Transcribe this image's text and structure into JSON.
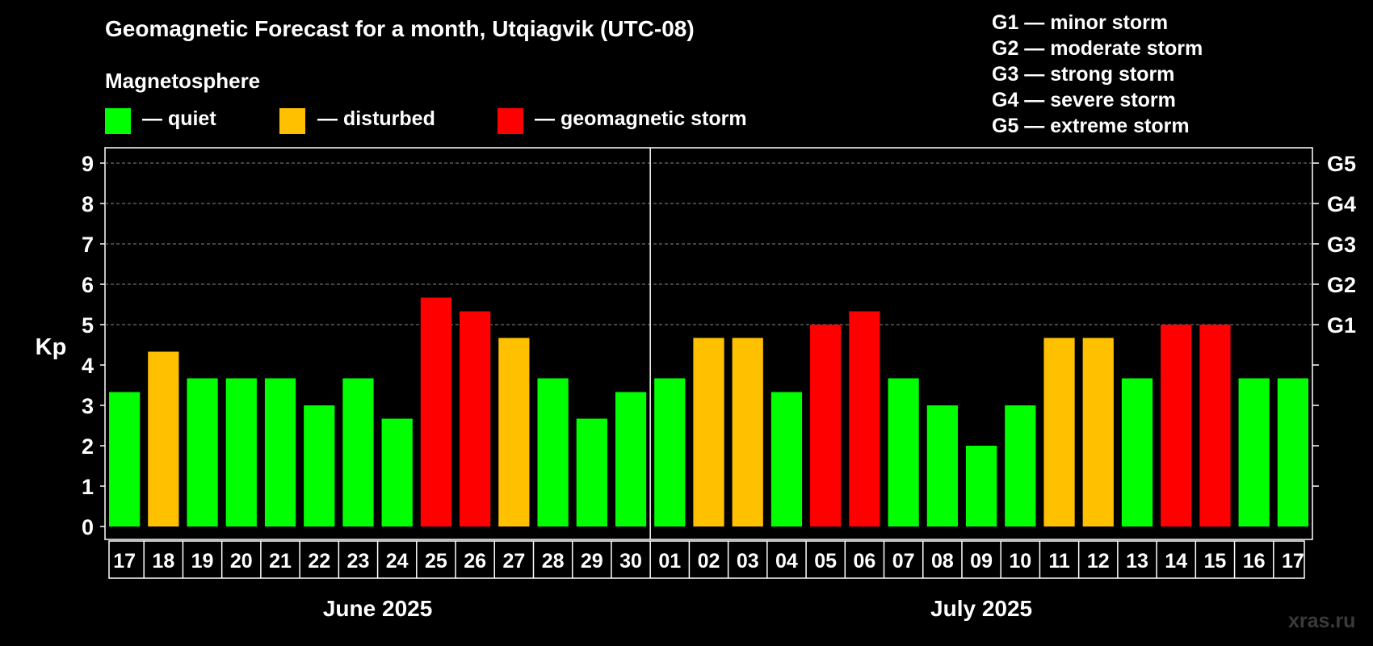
{
  "header": {
    "title": "Geomagnetic Forecast for a month, Utqiagvik (UTC-08)",
    "magnetosphere_label": "Magnetosphere"
  },
  "legend": [
    {
      "label": "— quiet",
      "color": "#00ff00"
    },
    {
      "label": "— disturbed",
      "color": "#ffc000"
    },
    {
      "label": "— geomagnetic storm",
      "color": "#ff0000"
    }
  ],
  "storm_levels": [
    "G1 — minor storm",
    "G2 — moderate storm",
    "G3 — strong storm",
    "G4 — severe storm",
    "G5 — extreme storm"
  ],
  "watermark": "xras.ru",
  "colors": {
    "quiet": "#00ff00",
    "disturbed": "#ffc000",
    "storm": "#ff0000",
    "background": "#000000",
    "axis": "#ffffff"
  },
  "chart_data": {
    "type": "bar",
    "title": "Geomagnetic Forecast for a month, Utqiagvik (UTC-08)",
    "ylabel": "Kp",
    "ylim": [
      0,
      9
    ],
    "yticks": [
      "0",
      "1",
      "2",
      "3",
      "4",
      "5",
      "6",
      "7",
      "8",
      "9"
    ],
    "right_axis": [
      {
        "kp": 5,
        "label": "G1"
      },
      {
        "kp": 6,
        "label": "G2"
      },
      {
        "kp": 7,
        "label": "G3"
      },
      {
        "kp": 8,
        "label": "G4"
      },
      {
        "kp": 9,
        "label": "G5"
      }
    ],
    "months": [
      {
        "label": "June 2025",
        "days": 14
      },
      {
        "label": "July 2025",
        "days": 17
      }
    ],
    "categories": [
      "17",
      "18",
      "19",
      "20",
      "21",
      "22",
      "23",
      "24",
      "25",
      "26",
      "27",
      "28",
      "29",
      "30",
      "01",
      "02",
      "03",
      "04",
      "05",
      "06",
      "07",
      "08",
      "09",
      "10",
      "11",
      "12",
      "13",
      "14",
      "15",
      "16",
      "17"
    ],
    "values": [
      3.33,
      4.33,
      3.67,
      3.67,
      3.67,
      3.0,
      3.67,
      2.67,
      5.67,
      5.33,
      4.67,
      3.67,
      2.67,
      3.33,
      3.67,
      4.67,
      4.67,
      3.33,
      5.0,
      5.33,
      3.67,
      3.0,
      2.0,
      3.0,
      4.67,
      4.67,
      3.67,
      5.0,
      5.0,
      3.67,
      3.67
    ],
    "levels": [
      "quiet",
      "disturbed",
      "quiet",
      "quiet",
      "quiet",
      "quiet",
      "quiet",
      "quiet",
      "storm",
      "storm",
      "disturbed",
      "quiet",
      "quiet",
      "quiet",
      "quiet",
      "disturbed",
      "disturbed",
      "quiet",
      "storm",
      "storm",
      "quiet",
      "quiet",
      "quiet",
      "quiet",
      "disturbed",
      "disturbed",
      "quiet",
      "storm",
      "storm",
      "quiet",
      "quiet"
    ]
  }
}
